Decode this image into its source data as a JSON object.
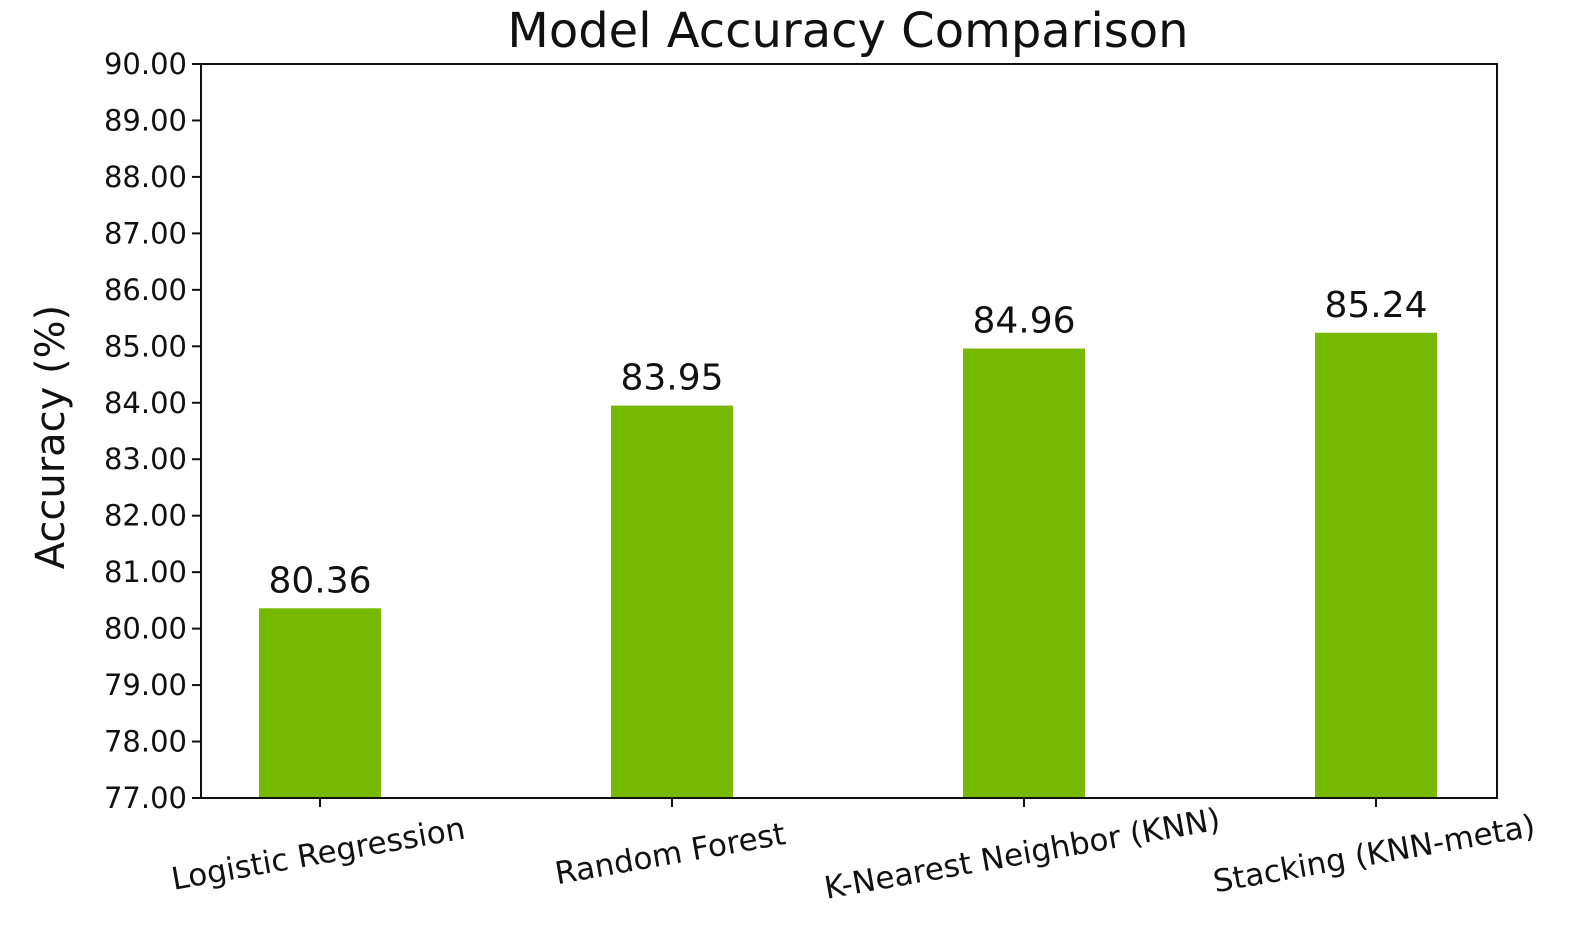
{
  "chart_data": {
    "type": "bar",
    "title": "Model Accuracy Comparison",
    "xlabel": "",
    "ylabel": "Accuracy (%)",
    "categories": [
      "Logistic Regression",
      "Random Forest",
      "K-Nearest Neighbor (KNN)",
      "Stacking (KNN-meta)"
    ],
    "values": [
      80.36,
      83.95,
      84.96,
      85.24
    ],
    "value_labels": [
      "80.36",
      "83.95",
      "84.96",
      "85.24"
    ],
    "ylim": [
      77,
      90
    ],
    "yticks": [
      "77.00",
      "78.00",
      "79.00",
      "80.00",
      "81.00",
      "82.00",
      "83.00",
      "84.00",
      "85.00",
      "86.00",
      "87.00",
      "88.00",
      "89.00",
      "90.00"
    ],
    "bar_color": "#77b800",
    "grid": false,
    "legend": "none"
  }
}
